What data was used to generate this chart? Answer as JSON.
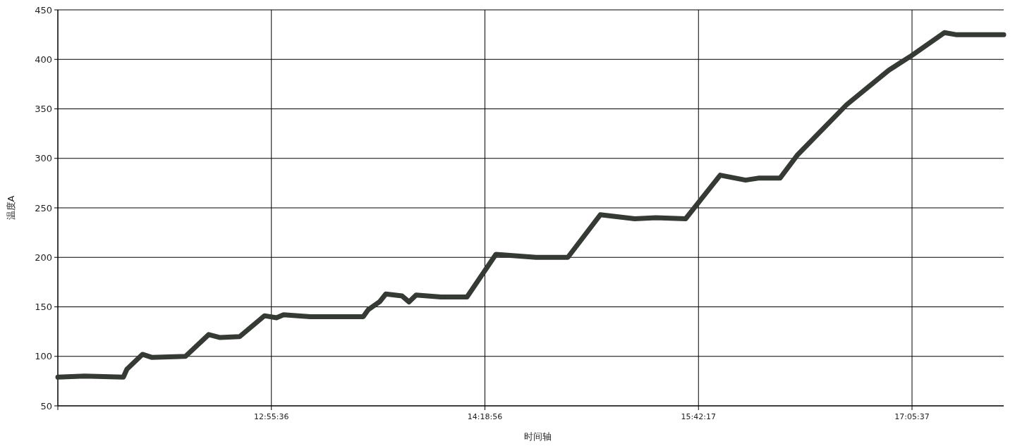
{
  "chart_data": {
    "type": "line",
    "xlabel": "时间轴",
    "ylabel": "温度A",
    "xlim": [
      11.53778,
      17.69
    ],
    "ylim": [
      50,
      450
    ],
    "xticks": [
      {
        "value": 11.53778,
        "label": null
      },
      {
        "value": 12.92667,
        "label": "12:55:36"
      },
      {
        "value": 14.31556,
        "label": "14:18:56"
      },
      {
        "value": 15.70472,
        "label": "15:42:17"
      },
      {
        "value": 17.09361,
        "label": "17:05:37"
      }
    ],
    "yticks": [
      50,
      100,
      150,
      200,
      250,
      300,
      350,
      400,
      450
    ],
    "grid": true,
    "marker": "none",
    "line_style": "solid",
    "series": [
      {
        "color": "#363a35",
        "x": [
          11.538,
          11.712,
          11.964,
          11.987,
          12.088,
          12.148,
          12.368,
          12.519,
          12.593,
          12.721,
          12.882,
          12.96,
          13.006,
          13.18,
          13.524,
          13.556,
          13.63,
          13.671,
          13.777,
          13.822,
          13.868,
          14.029,
          14.199,
          14.387,
          14.648,
          14.855,
          15.066,
          15.29,
          15.428,
          15.621,
          15.846,
          16.011,
          16.093,
          16.235,
          16.346,
          16.667,
          16.942,
          17.093,
          17.304,
          17.378,
          17.424,
          17.69
        ],
        "values": [
          79,
          80,
          79,
          87,
          102,
          99,
          100,
          122,
          119,
          120,
          141,
          139,
          142,
          140,
          140,
          147,
          155,
          163,
          161,
          155,
          162,
          160,
          160,
          203,
          200,
          200,
          243,
          239,
          240,
          239,
          283,
          278,
          280,
          280,
          303,
          354,
          389,
          404,
          427,
          425,
          425,
          425
        ]
      }
    ]
  }
}
